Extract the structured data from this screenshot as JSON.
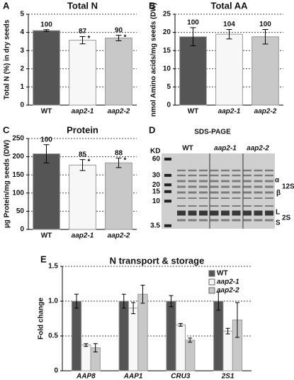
{
  "chart_data": [
    {
      "type": "bar",
      "panel": "A",
      "title": "Total N",
      "y_label": "Total N (%) in dry seeds",
      "categories": [
        "WT",
        "aap2-1",
        "aap2-2"
      ],
      "values": [
        4.1,
        3.57,
        3.69
      ],
      "errors": [
        0.05,
        0.2,
        0.15
      ],
      "relative_values": [
        100,
        87,
        90
      ],
      "significance": [
        null,
        "*",
        "*"
      ],
      "colors": [
        "#555555",
        "#f7f7f7",
        "#c8c8c8"
      ],
      "ylim": [
        0,
        5
      ],
      "yticks": [
        0,
        1,
        2,
        3,
        4,
        5
      ],
      "grid": true
    },
    {
      "type": "bar",
      "panel": "B",
      "title": "Total AA",
      "y_label": "nmol Amino acids/mg seeds (DW)",
      "categories": [
        "WT",
        "aap2-1",
        "aap2-2"
      ],
      "values": [
        18.8,
        19.5,
        18.8
      ],
      "errors": [
        2.5,
        1.3,
        2.0
      ],
      "relative_values": [
        100,
        104,
        100
      ],
      "significance": [
        null,
        null,
        null
      ],
      "colors": [
        "#555555",
        "#f7f7f7",
        "#c8c8c8"
      ],
      "ylim": [
        0,
        25
      ],
      "yticks": [
        0,
        5,
        10,
        15,
        20,
        25
      ],
      "grid": true
    },
    {
      "type": "bar",
      "panel": "C",
      "title": "Protein",
      "y_label": "µg Protein/mg seeds (DW)",
      "categories": [
        "WT",
        "aap2-1",
        "aap2-2"
      ],
      "values": [
        208,
        177,
        183
      ],
      "errors": [
        25,
        15,
        13
      ],
      "relative_values": [
        100,
        85,
        88
      ],
      "significance": [
        null,
        "*",
        "*"
      ],
      "colors": [
        "#555555",
        "#f7f7f7",
        "#c8c8c8"
      ],
      "ylim": [
        0,
        250
      ],
      "yticks": [
        0,
        50,
        100,
        150,
        200,
        250
      ],
      "grid": true
    },
    {
      "type": "gel",
      "panel": "D",
      "title": "SDS-PAGE",
      "ladder_unit": "KD",
      "ladder": [
        60,
        30,
        20,
        15,
        10,
        3.5
      ],
      "lanes": [
        "WT",
        "aap2-1",
        "aap2-2"
      ],
      "band_labels": [
        "α",
        "12S",
        "β",
        "L",
        "2S",
        "S"
      ]
    },
    {
      "type": "grouped_bar",
      "panel": "E",
      "title": "N transport & storage",
      "y_label": "Fold change",
      "categories": [
        "AAP8",
        "AAP1",
        "CRU3",
        "2S1"
      ],
      "series": [
        {
          "name": "WT",
          "color": "#555555",
          "values": [
            1,
            1,
            1,
            1
          ],
          "errors": [
            0.1,
            0.1,
            0.08,
            0.13
          ]
        },
        {
          "name": "aap2-1",
          "color": "#f7f7f7",
          "values": [
            0.37,
            0.9,
            0.66,
            0.57
          ],
          "errors": [
            0.02,
            0.08,
            0.02,
            0.04
          ]
        },
        {
          "name": "aap2-2",
          "color": "#c8c8c8",
          "values": [
            0.33,
            1.1,
            0.44,
            0.73
          ],
          "errors": [
            0.06,
            0.13,
            0.03,
            0.25
          ]
        }
      ],
      "ylim": [
        0,
        1.5
      ],
      "yticks": [
        0,
        0.5,
        {
          "value": 1,
          "label": "1.0"
        },
        1.5
      ],
      "grid": true,
      "legend": "upper right"
    }
  ]
}
